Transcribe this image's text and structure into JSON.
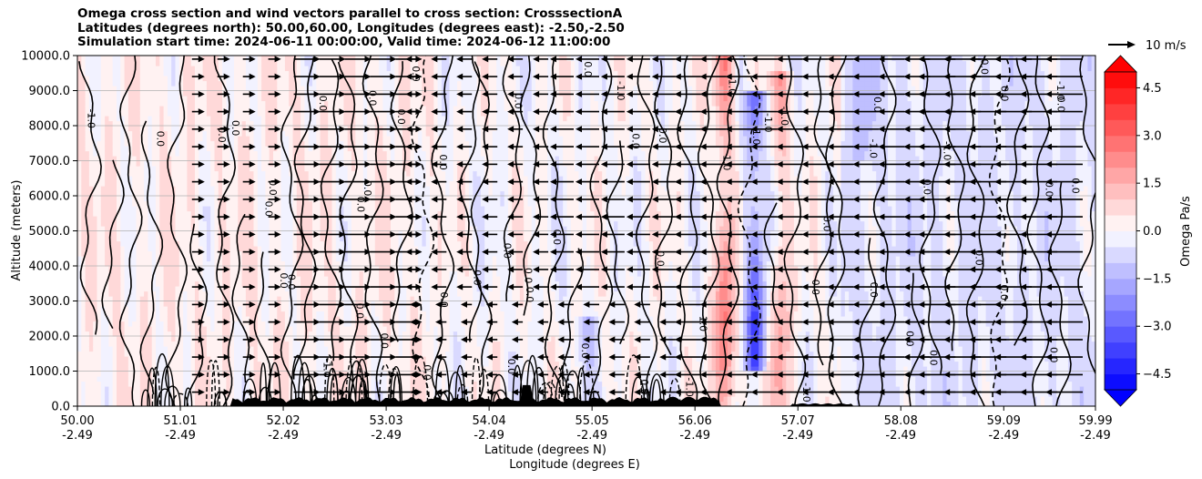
{
  "title_lines": [
    "Omega cross section and wind vectors parallel to cross section: CrosssectionA",
    "Latitudes (degrees north): 50.00,60.00, Longitudes (degrees east): -2.50,-2.50",
    "Simulation start time: 2024-06-11 00:00:00, Valid time: 2024-06-12 11:00:00"
  ],
  "chart_data": {
    "type": "heatmap",
    "xlabel": "Latitude (degrees N)",
    "xlabel2": "Longitude (degrees E)",
    "ylabel": "Altitude (meters)",
    "x_ticks": [
      {
        "lat": "50.00",
        "lon": "-2.49",
        "value": 50.0
      },
      {
        "lat": "51.01",
        "lon": "-2.49",
        "value": 51.01
      },
      {
        "lat": "52.02",
        "lon": "-2.49",
        "value": 52.02
      },
      {
        "lat": "53.03",
        "lon": "-2.49",
        "value": 53.03
      },
      {
        "lat": "54.04",
        "lon": "-2.49",
        "value": 54.04
      },
      {
        "lat": "55.05",
        "lon": "-2.49",
        "value": 55.05
      },
      {
        "lat": "56.06",
        "lon": "-2.49",
        "value": 56.06
      },
      {
        "lat": "57.07",
        "lon": "-2.49",
        "value": 57.07
      },
      {
        "lat": "58.08",
        "lon": "-2.49",
        "value": 58.08
      },
      {
        "lat": "59.09",
        "lon": "-2.49",
        "value": 59.09
      },
      {
        "lat": "59.99",
        "lon": "-2.49",
        "value": 59.99
      }
    ],
    "xlim": [
      50.0,
      59.99
    ],
    "y_ticks": [
      "0.0",
      "1000.0",
      "2000.0",
      "3000.0",
      "4000.0",
      "5000.0",
      "6000.0",
      "7000.0",
      "8000.0",
      "9000.0",
      "10000.0"
    ],
    "ylim": [
      0,
      10000
    ],
    "grid": "horizontal",
    "colorbar": {
      "label": "Omega Pa/s",
      "ticks": [
        "4.5",
        "3.0",
        "1.5",
        "0.0",
        "−1.5",
        "−3.0",
        "−4.5"
      ],
      "tick_values": [
        4.5,
        3.0,
        1.5,
        0.0,
        -1.5,
        -3.0,
        -4.5
      ],
      "range": [
        -5.0,
        5.0
      ],
      "colormap": "bwr",
      "extend": "both"
    },
    "quiver_key": {
      "label": "10 m/s",
      "speed": 10
    },
    "contour_labels": [
      "0.0",
      "-1.0",
      "1.0"
    ],
    "wind_direction_bands": [
      {
        "lat_range": [
          50.0,
          51.0
        ],
        "u": 0
      },
      {
        "lat_range": [
          51.0,
          52.0
        ],
        "u": 3
      },
      {
        "lat_range": [
          52.0,
          53.3
        ],
        "u": 8
      },
      {
        "lat_range": [
          53.3,
          54.7
        ],
        "u": -4
      },
      {
        "lat_range": [
          54.7,
          56.0
        ],
        "u": -7
      },
      {
        "lat_range": [
          56.0,
          56.9
        ],
        "u": -8
      },
      {
        "lat_range": [
          56.9,
          58.5
        ],
        "u": -8
      },
      {
        "lat_range": [
          58.5,
          59.99
        ],
        "u": -12
      }
    ],
    "omega_features": [
      {
        "lat": 56.35,
        "alt_range": [
          0,
          10000
        ],
        "value": 2.5
      },
      {
        "lat": 56.65,
        "alt_range": [
          1000,
          9000
        ],
        "value": -3.5
      },
      {
        "lat": 56.9,
        "alt_range": [
          0,
          9500
        ],
        "value": 1.5
      },
      {
        "lat": 55.0,
        "alt_range": [
          0,
          2500
        ],
        "value": -1.5
      },
      {
        "lat": 57.7,
        "alt_range": [
          7000,
          10000
        ],
        "value": -1.0
      }
    ]
  }
}
